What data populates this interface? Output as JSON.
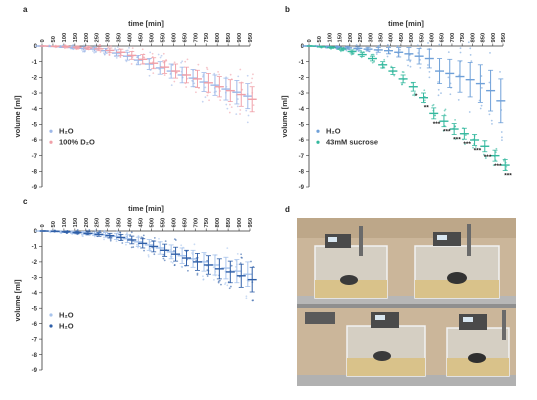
{
  "charts": [
    {
      "panel_label": "a",
      "chart_data": {
        "type": "scatter",
        "title": "",
        "xlabel": "time [min]",
        "ylabel": "volume [ml]",
        "x": [
          0,
          50,
          100,
          150,
          200,
          250,
          300,
          350,
          400,
          450,
          500,
          550,
          600,
          650,
          700,
          750,
          800,
          850,
          900,
          950
        ],
        "xlim": [
          0,
          950
        ],
        "ylim": [
          -9,
          0
        ],
        "y_ticks": [
          0,
          -1,
          -2,
          -3,
          -4,
          -5,
          -6,
          -7,
          -8,
          -9
        ],
        "legend_position": "bottom-left",
        "series": [
          {
            "name": "H₂O",
            "color": "#9eb8e8",
            "values": [
              0,
              -0.02,
              -0.05,
              -0.1,
              -0.15,
              -0.2,
              -0.3,
              -0.45,
              -0.65,
              -0.9,
              -1.15,
              -1.4,
              -1.6,
              -1.85,
              -2.05,
              -2.3,
              -2.5,
              -2.75,
              -2.95,
              -3.2
            ],
            "err": [
              0,
              0.03,
              0.05,
              0.08,
              0.1,
              0.12,
              0.15,
              0.2,
              0.25,
              0.3,
              0.35,
              0.4,
              0.45,
              0.5,
              0.55,
              0.6,
              0.65,
              0.7,
              0.75,
              0.8
            ]
          },
          {
            "name": "100% D₂O",
            "color": "#f0a0a8",
            "values": [
              0,
              -0.02,
              -0.04,
              -0.08,
              -0.12,
              -0.18,
              -0.28,
              -0.4,
              -0.6,
              -0.85,
              -1.1,
              -1.35,
              -1.6,
              -1.85,
              -2.1,
              -2.35,
              -2.6,
              -2.85,
              -3.1,
              -3.4
            ],
            "err": [
              0,
              0.03,
              0.05,
              0.08,
              0.1,
              0.12,
              0.15,
              0.2,
              0.25,
              0.3,
              0.35,
              0.4,
              0.45,
              0.5,
              0.55,
              0.6,
              0.65,
              0.7,
              0.75,
              0.8
            ]
          }
        ],
        "significance": []
      }
    },
    {
      "panel_label": "b",
      "chart_data": {
        "type": "scatter",
        "title": "",
        "xlabel": "time [min]",
        "ylabel": "volume [ml]",
        "x": [
          0,
          50,
          100,
          150,
          200,
          250,
          300,
          350,
          400,
          450,
          500,
          550,
          600,
          650,
          700,
          750,
          800,
          850,
          900,
          950
        ],
        "xlim": [
          0,
          950
        ],
        "ylim": [
          -9,
          0
        ],
        "y_ticks": [
          0,
          -1,
          -2,
          -3,
          -4,
          -5,
          -6,
          -7,
          -8,
          -9
        ],
        "legend_position": "bottom-left",
        "series": [
          {
            "name": "H₂O",
            "color": "#6fa0d8",
            "values": [
              0,
              -0.02,
              -0.05,
              -0.08,
              -0.12,
              -0.15,
              -0.2,
              -0.25,
              -0.3,
              -0.4,
              -0.5,
              -0.65,
              -0.8,
              -1.6,
              -1.75,
              -1.95,
              -2.15,
              -2.4,
              -2.85,
              -3.5
            ],
            "err": [
              0,
              0.02,
              0.04,
              0.06,
              0.08,
              0.1,
              0.12,
              0.15,
              0.2,
              0.3,
              0.4,
              0.5,
              0.6,
              0.8,
              0.9,
              1.0,
              1.1,
              1.2,
              1.3,
              1.4
            ]
          },
          {
            "name": "43mM sucrose",
            "color": "#33b89e",
            "values": [
              0,
              -0.05,
              -0.1,
              -0.2,
              -0.35,
              -0.55,
              -0.8,
              -1.2,
              -1.6,
              -2.1,
              -2.6,
              -3.3,
              -4.3,
              -4.8,
              -5.3,
              -5.6,
              -6.0,
              -6.4,
              -7.0,
              -7.6
            ],
            "err": [
              0,
              0.03,
              0.05,
              0.08,
              0.1,
              0.12,
              0.15,
              0.2,
              0.22,
              0.25,
              0.28,
              0.3,
              0.35,
              0.35,
              0.35,
              0.35,
              0.35,
              0.35,
              0.35,
              0.35
            ]
          }
        ],
        "significance": [
          "",
          "",
          "",
          "",
          "",
          "",
          "",
          "",
          "",
          "",
          "*",
          "**",
          "***",
          "***",
          "***",
          "***",
          "***",
          "***",
          "***",
          "***"
        ]
      }
    },
    {
      "panel_label": "c",
      "chart_data": {
        "type": "scatter",
        "title": "",
        "xlabel": "time [min]",
        "ylabel": "volume [ml]",
        "x": [
          0,
          50,
          100,
          150,
          200,
          250,
          300,
          350,
          400,
          450,
          500,
          550,
          600,
          650,
          700,
          750,
          800,
          850,
          900,
          950
        ],
        "xlim": [
          0,
          950
        ],
        "ylim": [
          -9,
          0
        ],
        "y_ticks": [
          0,
          -1,
          -2,
          -3,
          -4,
          -5,
          -6,
          -7,
          -8,
          -9
        ],
        "legend_position": "bottom-left",
        "series": [
          {
            "name": "H₂O",
            "color": "#a8c4ec",
            "values": [
              0,
              -0.02,
              -0.05,
              -0.08,
              -0.12,
              -0.18,
              -0.25,
              -0.35,
              -0.5,
              -0.7,
              -0.9,
              -1.1,
              -1.35,
              -1.6,
              -1.8,
              -2.0,
              -2.2,
              -2.4,
              -2.6,
              -2.8
            ],
            "err": [
              0,
              0.03,
              0.05,
              0.08,
              0.1,
              0.12,
              0.15,
              0.2,
              0.25,
              0.3,
              0.35,
              0.4,
              0.45,
              0.5,
              0.55,
              0.6,
              0.65,
              0.7,
              0.75,
              0.8
            ]
          },
          {
            "name": "H₂O",
            "color": "#2f5fa8",
            "values": [
              0,
              -0.02,
              -0.05,
              -0.1,
              -0.15,
              -0.22,
              -0.3,
              -0.42,
              -0.58,
              -0.8,
              -1.0,
              -1.25,
              -1.5,
              -1.75,
              -2.0,
              -2.2,
              -2.45,
              -2.65,
              -2.9,
              -3.15
            ],
            "err": [
              0,
              0.03,
              0.05,
              0.08,
              0.1,
              0.12,
              0.15,
              0.2,
              0.25,
              0.3,
              0.35,
              0.4,
              0.45,
              0.5,
              0.55,
              0.6,
              0.65,
              0.7,
              0.75,
              0.8
            ]
          }
        ],
        "significance": []
      }
    }
  ],
  "photo_panel": {
    "panel_label": "d",
    "colors": {
      "wall": "#cbb69a",
      "shelf": "#b9b9b9",
      "cage_edge": "#e8e8e8",
      "bedding": "#d9c28a"
    }
  }
}
